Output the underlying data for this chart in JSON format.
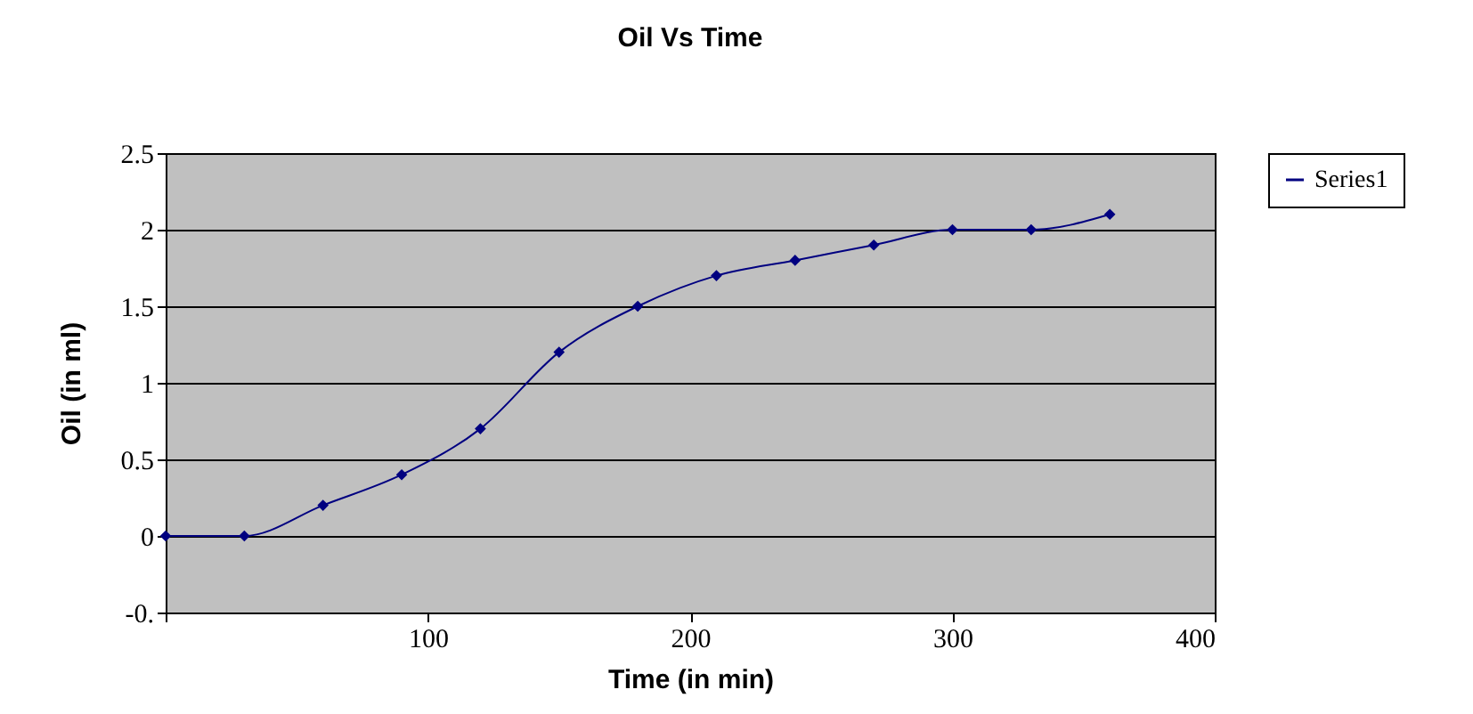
{
  "chart_data": {
    "type": "line",
    "title": "Oil Vs Time",
    "xlabel": "Time (in min)",
    "ylabel": "Oil (in ml)",
    "x": [
      0,
      30,
      60,
      90,
      120,
      150,
      180,
      210,
      240,
      270,
      300,
      330,
      360
    ],
    "series": [
      {
        "name": "Series1",
        "color": "#000080",
        "values": [
          0,
          0,
          0.2,
          0.4,
          0.7,
          1.2,
          1.5,
          1.7,
          1.8,
          1.9,
          2,
          2,
          2.1
        ]
      }
    ],
    "xlim": [
      0,
      400
    ],
    "xticks": [
      {
        "value": 0,
        "label": null
      },
      100,
      200,
      300,
      400
    ],
    "ylim": [
      -0.5,
      2.5
    ],
    "yticks": [
      {
        "value": -0.5,
        "label": "-0."
      },
      0,
      0.5,
      1,
      1.5,
      2,
      2.5
    ],
    "grid": "y",
    "legend": "right",
    "marker": "diamond",
    "line_style": "solid"
  }
}
